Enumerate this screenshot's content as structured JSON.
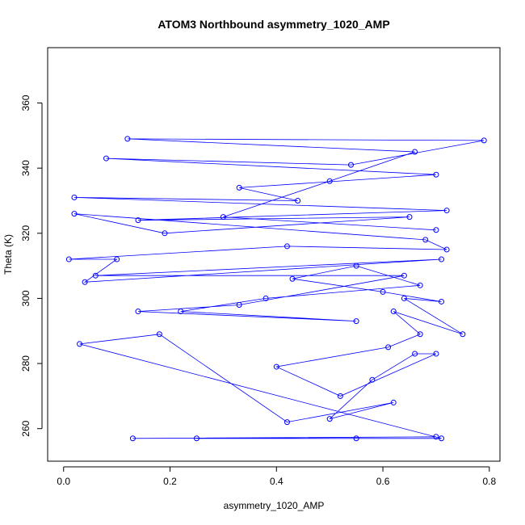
{
  "chart_data": {
    "type": "line",
    "title": "ATOM3 Northbound asymmetry_1020_AMP",
    "xlabel": "asymmetry_1020_AMP",
    "ylabel": "Theta (K)",
    "xlim": [
      -0.03,
      0.82
    ],
    "ylim": [
      250,
      377
    ],
    "x_ticks": [
      0.0,
      0.2,
      0.4,
      0.6,
      0.8
    ],
    "x_tick_labels": [
      "0.0",
      "0.2",
      "0.4",
      "0.6",
      "0.8"
    ],
    "y_ticks": [
      260,
      280,
      300,
      320,
      340,
      360
    ],
    "y_tick_labels": [
      "260",
      "280",
      "300",
      "320",
      "340",
      "360"
    ],
    "marker": "open-circle",
    "grid": false,
    "legend": "none",
    "color": "#0000ff",
    "series": [
      {
        "points": [
          [
            0.13,
            257
          ],
          [
            0.7,
            257.5
          ],
          [
            0.25,
            257
          ],
          [
            0.55,
            257
          ],
          [
            0.71,
            257
          ],
          [
            0.03,
            286
          ],
          [
            0.18,
            289
          ],
          [
            0.42,
            262
          ],
          [
            0.62,
            268
          ],
          [
            0.5,
            263
          ],
          [
            0.58,
            275
          ],
          [
            0.66,
            283
          ],
          [
            0.7,
            283
          ],
          [
            0.52,
            270
          ],
          [
            0.4,
            279
          ],
          [
            0.61,
            285
          ],
          [
            0.67,
            289
          ],
          [
            0.62,
            296
          ],
          [
            0.75,
            289
          ],
          [
            0.64,
            300
          ],
          [
            0.71,
            299
          ],
          [
            0.6,
            302
          ],
          [
            0.43,
            306
          ],
          [
            0.55,
            310
          ],
          [
            0.67,
            304
          ],
          [
            0.38,
            300
          ],
          [
            0.22,
            296
          ],
          [
            0.55,
            293
          ],
          [
            0.14,
            296
          ],
          [
            0.33,
            298
          ],
          [
            0.64,
            307
          ],
          [
            0.06,
            307
          ],
          [
            0.71,
            312
          ],
          [
            0.04,
            305
          ],
          [
            0.1,
            312
          ],
          [
            0.01,
            312
          ],
          [
            0.42,
            316
          ],
          [
            0.72,
            315
          ],
          [
            0.68,
            318
          ],
          [
            0.02,
            326
          ],
          [
            0.19,
            320
          ],
          [
            0.65,
            325
          ],
          [
            0.14,
            324
          ],
          [
            0.72,
            327
          ],
          [
            0.02,
            331
          ],
          [
            0.44,
            330
          ],
          [
            0.33,
            334
          ],
          [
            0.7,
            338
          ],
          [
            0.08,
            343
          ],
          [
            0.54,
            341
          ],
          [
            0.79,
            348.5
          ],
          [
            0.12,
            349
          ],
          [
            0.66,
            345
          ],
          [
            0.5,
            336
          ],
          [
            0.3,
            325
          ],
          [
            0.7,
            321
          ]
        ]
      }
    ]
  }
}
